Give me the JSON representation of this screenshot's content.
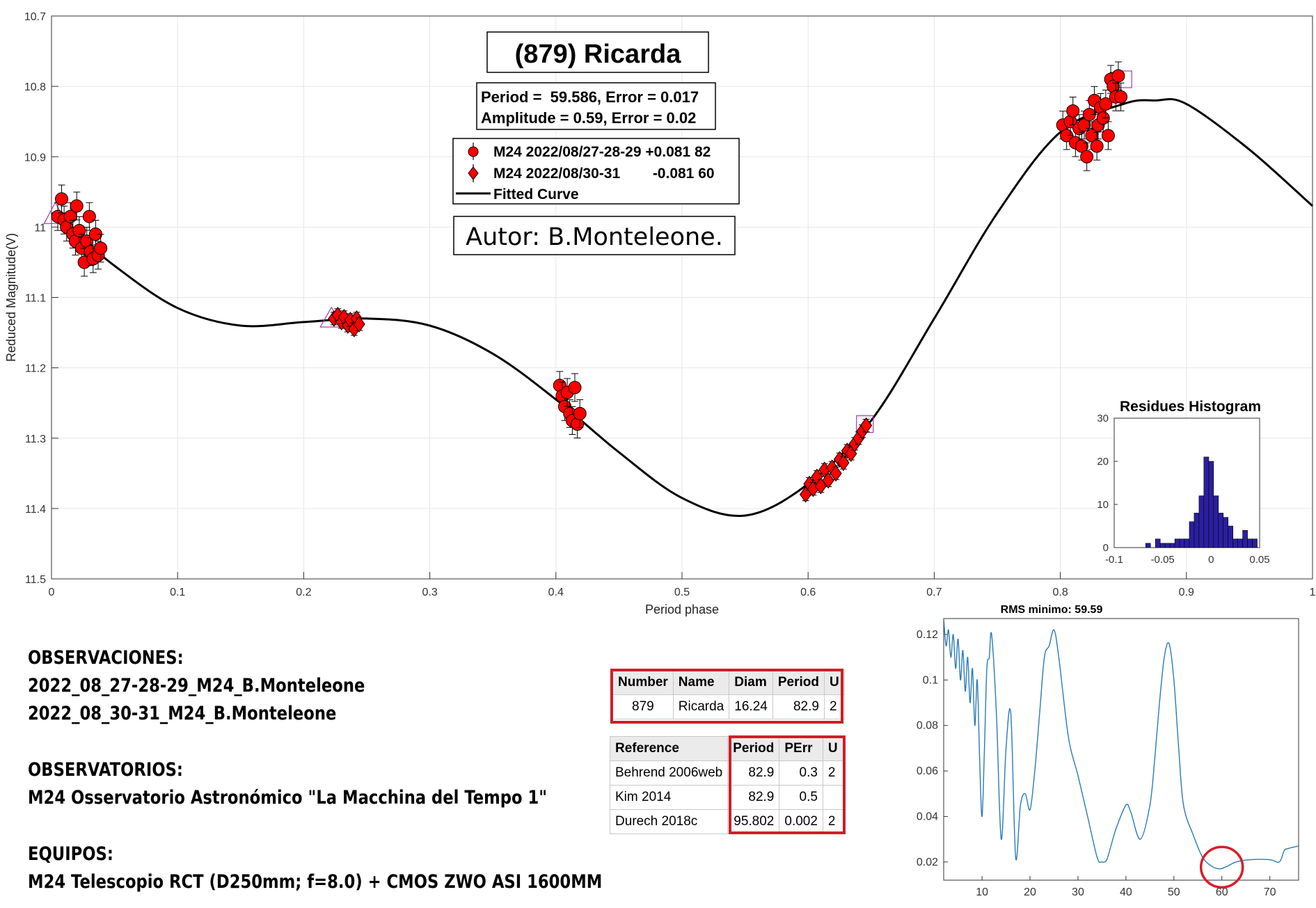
{
  "chart_data": [
    {
      "type": "scatter",
      "title": "(879) Ricarda",
      "period_text": "Period =  59.586, Error = 0.017",
      "amplitude_text": "Amplitude = 0.59, Error = 0.02",
      "author_text": "Autor: B.Monteleone.",
      "xlabel": "Period phase",
      "ylabel": "Reduced Magnitude(V)",
      "xlim": [
        0,
        1
      ],
      "ylim": [
        10.7,
        11.5
      ],
      "y_reversed": true,
      "grid": true,
      "xticks": [
        "0",
        "0.1",
        "0.2",
        "0.3",
        "0.4",
        "0.5",
        "0.6",
        "0.7",
        "0.8",
        "0.9",
        "1"
      ],
      "yticks": [
        "10.7",
        "10.8",
        "10.9",
        "11",
        "11.1",
        "11.2",
        "11.3",
        "11.4",
        "11.5"
      ],
      "legend_position": "top-center",
      "legend": [
        {
          "label": "M24 2022/08/27-28-29 +0.081 82",
          "marker": "circle"
        },
        {
          "label": "M24 2022/08/30-31        -0.081 60",
          "marker": "diamond"
        },
        {
          "label": "Fitted Curve",
          "marker": "line"
        }
      ],
      "fitted_curve": {
        "x": [
          0.0,
          0.05,
          0.1,
          0.15,
          0.2,
          0.25,
          0.3,
          0.35,
          0.4,
          0.45,
          0.5,
          0.55,
          0.6,
          0.65,
          0.7,
          0.75,
          0.8,
          0.85,
          0.875,
          0.9,
          0.95,
          1.0
        ],
        "y": [
          10.98,
          11.055,
          11.115,
          11.14,
          11.135,
          11.13,
          11.14,
          11.18,
          11.245,
          11.32,
          11.385,
          11.41,
          11.365,
          11.275,
          11.13,
          10.98,
          10.865,
          10.825,
          10.82,
          10.825,
          10.89,
          10.97
        ]
      },
      "series": [
        {
          "name": "M24 2022/08/27-28-29 +0.081 82",
          "marker": "circle",
          "color": "#ff0000",
          "points": [
            [
              0.005,
              10.985
            ],
            [
              0.008,
              10.96
            ],
            [
              0.01,
              10.99
            ],
            [
              0.012,
              11.0
            ],
            [
              0.015,
              10.985
            ],
            [
              0.017,
              11.01
            ],
            [
              0.019,
              11.02
            ],
            [
              0.02,
              10.97
            ],
            [
              0.022,
              11.005
            ],
            [
              0.024,
              11.03
            ],
            [
              0.026,
              11.05
            ],
            [
              0.028,
              11.02
            ],
            [
              0.03,
              10.985
            ],
            [
              0.031,
              11.035
            ],
            [
              0.033,
              11.045
            ],
            [
              0.035,
              11.01
            ],
            [
              0.037,
              11.04
            ],
            [
              0.039,
              11.03
            ],
            [
              0.403,
              11.225
            ],
            [
              0.405,
              11.24
            ],
            [
              0.407,
              11.255
            ],
            [
              0.409,
              11.235
            ],
            [
              0.411,
              11.265
            ],
            [
              0.413,
              11.275
            ],
            [
              0.415,
              11.228
            ],
            [
              0.417,
              11.28
            ],
            [
              0.419,
              11.265
            ],
            [
              0.802,
              10.855
            ],
            [
              0.805,
              10.87
            ],
            [
              0.808,
              10.85
            ],
            [
              0.81,
              10.835
            ],
            [
              0.812,
              10.88
            ],
            [
              0.815,
              10.86
            ],
            [
              0.817,
              10.885
            ],
            [
              0.819,
              10.855
            ],
            [
              0.821,
              10.9
            ],
            [
              0.823,
              10.84
            ],
            [
              0.825,
              10.87
            ],
            [
              0.827,
              10.82
            ],
            [
              0.829,
              10.885
            ],
            [
              0.83,
              10.855
            ],
            [
              0.832,
              10.83
            ],
            [
              0.834,
              10.845
            ],
            [
              0.836,
              10.825
            ],
            [
              0.838,
              10.87
            ],
            [
              0.84,
              10.79
            ],
            [
              0.842,
              10.8
            ],
            [
              0.844,
              10.815
            ],
            [
              0.846,
              10.785
            ],
            [
              0.848,
              10.815
            ]
          ]
        },
        {
          "name": "M24 2022/08/30-31        -0.081 60",
          "marker": "diamond",
          "color": "#ff0000",
          "points": [
            [
              0.224,
              11.13
            ],
            [
              0.227,
              11.125
            ],
            [
              0.23,
              11.135
            ],
            [
              0.232,
              11.128
            ],
            [
              0.235,
              11.14
            ],
            [
              0.237,
              11.132
            ],
            [
              0.24,
              11.145
            ],
            [
              0.242,
              11.13
            ],
            [
              0.244,
              11.138
            ],
            [
              0.598,
              11.38
            ],
            [
              0.601,
              11.365
            ],
            [
              0.604,
              11.372
            ],
            [
              0.607,
              11.355
            ],
            [
              0.61,
              11.368
            ],
            [
              0.613,
              11.345
            ],
            [
              0.616,
              11.36
            ],
            [
              0.619,
              11.342
            ],
            [
              0.622,
              11.35
            ],
            [
              0.625,
              11.33
            ],
            [
              0.628,
              11.335
            ],
            [
              0.631,
              11.318
            ],
            [
              0.634,
              11.322
            ],
            [
              0.637,
              11.308
            ],
            [
              0.64,
              11.3
            ],
            [
              0.643,
              11.29
            ],
            [
              0.646,
              11.282
            ]
          ]
        }
      ]
    },
    {
      "type": "bar",
      "title": "Residues Histogram",
      "xlim": [
        -0.1,
        0.05
      ],
      "ylim": [
        0,
        30
      ],
      "xticks": [
        "-0.1",
        "-0.05",
        "0",
        "0.05"
      ],
      "yticks": [
        "0",
        "10",
        "20",
        "30"
      ],
      "color": "#2a1f9e",
      "bin_width": 0.005,
      "bins_x": [
        -0.065,
        -0.06,
        -0.055,
        -0.05,
        -0.045,
        -0.04,
        -0.035,
        -0.03,
        -0.025,
        -0.02,
        -0.015,
        -0.01,
        -0.005,
        0.0,
        0.005,
        0.01,
        0.015,
        0.02,
        0.025,
        0.03,
        0.035,
        0.04,
        0.045
      ],
      "values": [
        1,
        0,
        2,
        1,
        1,
        1,
        2,
        2,
        2,
        6,
        8,
        12,
        21,
        20,
        12,
        8,
        7,
        5,
        2,
        2,
        4,
        2,
        2
      ]
    },
    {
      "type": "line",
      "title": "RMS minimo: 59.59",
      "xlim": [
        2,
        76
      ],
      "ylim": [
        0.012,
        0.127
      ],
      "xticks": [
        "10",
        "20",
        "30",
        "40",
        "50",
        "60",
        "70"
      ],
      "yticks": [
        "0.02",
        "0.04",
        "0.06",
        "0.08",
        "0.1",
        "0.12"
      ],
      "color": "#2a7ab8",
      "x": [
        2,
        2.5,
        3,
        3.5,
        4,
        4.5,
        5,
        5.5,
        6,
        6.5,
        7,
        7.5,
        8,
        8.5,
        9,
        9.5,
        10,
        10.5,
        11,
        11.5,
        12,
        13,
        14,
        15,
        16,
        17,
        18,
        19,
        20,
        21,
        22,
        23,
        24,
        25,
        26,
        28,
        30,
        32,
        34,
        35,
        36,
        37,
        38,
        40,
        41,
        43,
        45,
        46,
        47,
        48,
        49,
        50,
        51,
        52,
        54,
        56,
        58,
        59.59,
        61,
        63,
        66,
        70,
        72,
        73,
        74,
        76
      ],
      "y": [
        0.127,
        0.115,
        0.122,
        0.11,
        0.12,
        0.105,
        0.118,
        0.1,
        0.113,
        0.095,
        0.11,
        0.09,
        0.105,
        0.08,
        0.1,
        0.065,
        0.04,
        0.07,
        0.105,
        0.11,
        0.12,
        0.085,
        0.03,
        0.07,
        0.085,
        0.022,
        0.045,
        0.05,
        0.043,
        0.06,
        0.085,
        0.11,
        0.115,
        0.122,
        0.11,
        0.075,
        0.058,
        0.04,
        0.022,
        0.02,
        0.021,
        0.028,
        0.035,
        0.045,
        0.042,
        0.03,
        0.045,
        0.065,
        0.09,
        0.11,
        0.116,
        0.1,
        0.07,
        0.045,
        0.032,
        0.022,
        0.018,
        0.017,
        0.018,
        0.02,
        0.021,
        0.021,
        0.02,
        0.025,
        0.026,
        0.027
      ],
      "highlight": {
        "x": 60,
        "y": 0.0165
      }
    }
  ],
  "observations": {
    "l1": "OBSERVACIONES:",
    "l2": "2022_08_27-28-29_M24_B.Monteleone",
    "l3": "2022_08_30-31_M24_B.Monteleone",
    "l4": "OBSERVATORIOS:",
    "l5": "M24 Osservatorio Astronómico \"La Macchina del Tempo 1\"",
    "l6": "EQUIPOS:",
    "l7": "M24 Telescopio RCT (D250mm; f=8.0) + CMOS ZWO ASI 1600MM"
  },
  "lcdb_table": {
    "headers": [
      "Number",
      "Name",
      "Diam",
      "Period",
      "U"
    ],
    "rows": [
      [
        "879",
        "Ricarda",
        "16.24",
        "82.9",
        "2"
      ]
    ]
  },
  "ref_table": {
    "headers": [
      "Reference",
      "Period",
      "PErr",
      "U"
    ],
    "rows": [
      [
        "Behrend 2006web",
        "82.9",
        "0.3",
        "2"
      ],
      [
        "Kim 2014",
        "82.9",
        "0.5",
        ""
      ],
      [
        "Durech 2018c",
        "95.802",
        "0.002",
        "2"
      ]
    ]
  }
}
